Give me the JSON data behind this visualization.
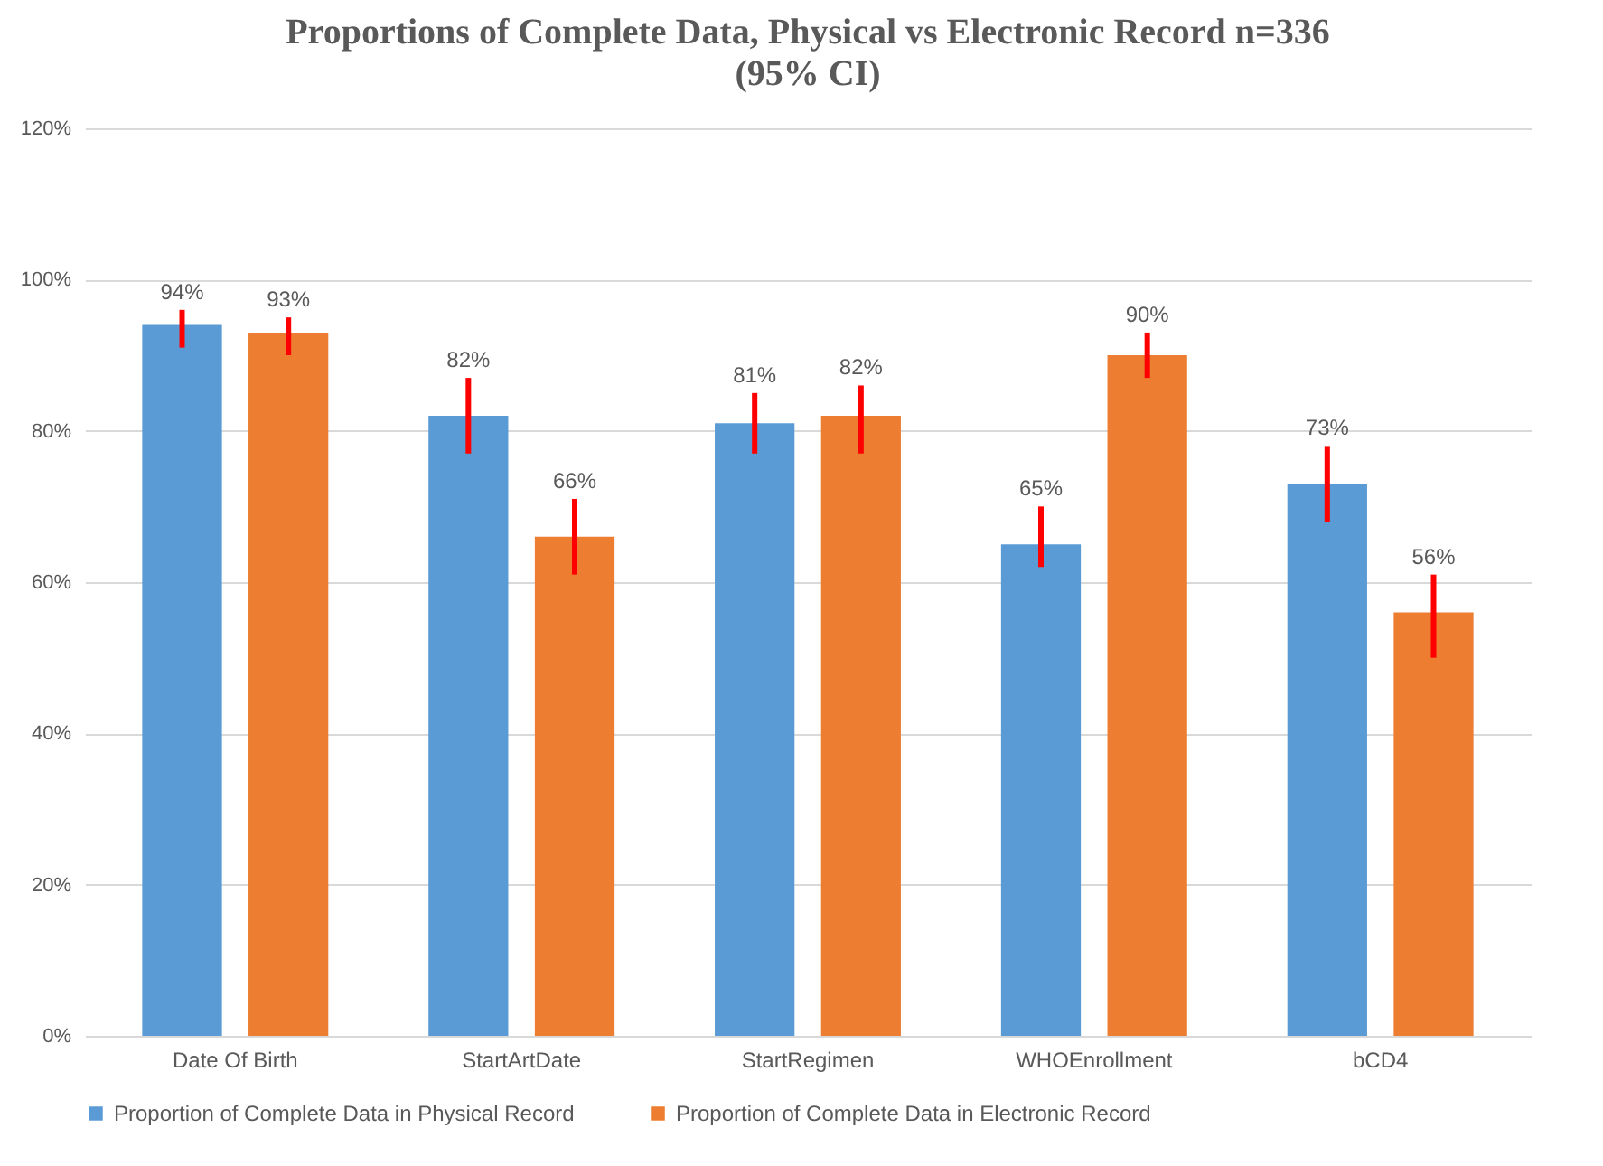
{
  "chart_data": {
    "type": "bar",
    "title": "Proportions of Complete Data, Physical  vs Electronic Record n=336",
    "subtitle": "(95% CI)",
    "categories": [
      "Date Of Birth",
      "StartArtDate",
      "StartRegimen",
      "WHOEnrollment",
      "bCD4"
    ],
    "series": [
      {
        "name": "Proportion of Complete Data in Physical Record",
        "color": "#5b9bd5",
        "values": [
          94,
          82,
          81,
          65,
          73
        ],
        "value_labels": [
          "94%",
          "82%",
          "81%",
          "65%",
          "73%"
        ],
        "errors": [
          [
            91,
            96
          ],
          [
            77,
            87
          ],
          [
            77,
            85
          ],
          [
            62,
            70
          ],
          [
            68,
            78
          ]
        ]
      },
      {
        "name": "Proportion of Complete Data in Electronic Record",
        "color": "#ed7d31",
        "values": [
          93,
          66,
          82,
          90,
          56
        ],
        "value_labels": [
          "93%",
          "66%",
          "82%",
          "90%",
          "56%"
        ],
        "errors": [
          [
            90,
            95
          ],
          [
            61,
            71
          ],
          [
            77,
            86
          ],
          [
            87,
            93
          ],
          [
            50,
            61
          ]
        ]
      }
    ],
    "ylim": [
      0,
      120
    ],
    "yticks": [
      {
        "value": 0,
        "label": "0%"
      },
      {
        "value": 20,
        "label": "20%"
      },
      {
        "value": 40,
        "label": "40%"
      },
      {
        "value": 60,
        "label": "60%"
      },
      {
        "value": 80,
        "label": "80%"
      },
      {
        "value": 100,
        "label": "100%"
      },
      {
        "value": 120,
        "label": "120%"
      }
    ],
    "grid": "y",
    "legend": "bottom"
  }
}
